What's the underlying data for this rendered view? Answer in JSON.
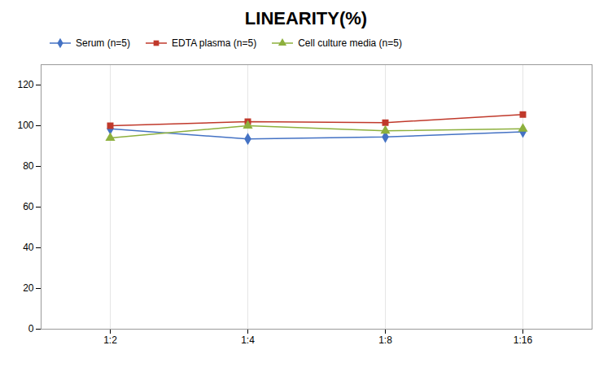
{
  "chart_data": {
    "type": "line",
    "title": "LINEARITY(%)",
    "categories": [
      "1:2",
      "1:4",
      "1:8",
      "1:16"
    ],
    "series": [
      {
        "name": "Serum (n=5)",
        "color": "#4472C4",
        "marker": "diamond",
        "values": [
          98.5,
          93.5,
          94.5,
          97.0
        ]
      },
      {
        "name": "EDTA plasma (n=5)",
        "color": "#C0392B",
        "marker": "square",
        "values": [
          100.0,
          102.0,
          101.5,
          105.5
        ]
      },
      {
        "name": "Cell culture media (n=5)",
        "color": "#8DB03D",
        "marker": "triangle",
        "values": [
          94.0,
          100.0,
          97.5,
          98.5
        ]
      }
    ],
    "ylim": [
      0,
      130
    ],
    "yticks": [
      0,
      20,
      40,
      60,
      80,
      100,
      120
    ],
    "grid": "x",
    "legend": "top"
  }
}
